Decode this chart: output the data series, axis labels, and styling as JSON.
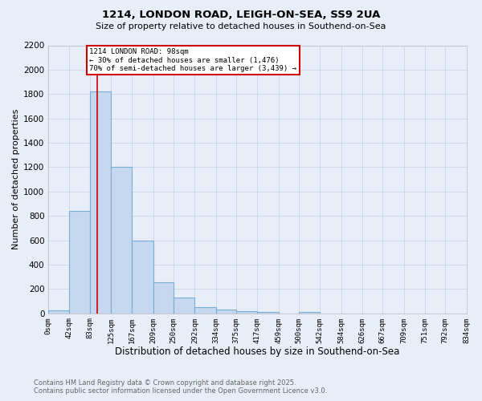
{
  "title1": "1214, LONDON ROAD, LEIGH-ON-SEA, SS9 2UA",
  "title2": "Size of property relative to detached houses in Southend-on-Sea",
  "xlabel": "Distribution of detached houses by size in Southend-on-Sea",
  "ylabel": "Number of detached properties",
  "footer1": "Contains HM Land Registry data © Crown copyright and database right 2025.",
  "footer2": "Contains public sector information licensed under the Open Government Licence v3.0.",
  "bin_edges": [
    0,
    42,
    83,
    125,
    167,
    209,
    250,
    292,
    334,
    375,
    417,
    459,
    500,
    542,
    584,
    626,
    667,
    709,
    751,
    792,
    834
  ],
  "bin_labels": [
    "0sqm",
    "42sqm",
    "83sqm",
    "125sqm",
    "167sqm",
    "209sqm",
    "250sqm",
    "292sqm",
    "334sqm",
    "375sqm",
    "417sqm",
    "459sqm",
    "500sqm",
    "542sqm",
    "584sqm",
    "626sqm",
    "667sqm",
    "709sqm",
    "751sqm",
    "792sqm",
    "834sqm"
  ],
  "bar_values": [
    25,
    840,
    1820,
    1200,
    600,
    255,
    130,
    50,
    30,
    15,
    10,
    0,
    10,
    0,
    0,
    0,
    0,
    0,
    0,
    0
  ],
  "bar_color": "#c5d8f0",
  "bar_edge_color": "#7aadd4",
  "grid_color": "#c8d4e8",
  "bg_color": "#e8eef8",
  "property_size": 98,
  "vline_color": "#cc0000",
  "annotation_text": "1214 LONDON ROAD: 98sqm\n← 30% of detached houses are smaller (1,476)\n70% of semi-detached houses are larger (3,439) →",
  "annotation_box_color": "#cc0000",
  "annotation_bg": "#ffffff",
  "ylim": [
    0,
    2200
  ],
  "yticks": [
    0,
    200,
    400,
    600,
    800,
    1000,
    1200,
    1400,
    1600,
    1800,
    2000,
    2200
  ]
}
